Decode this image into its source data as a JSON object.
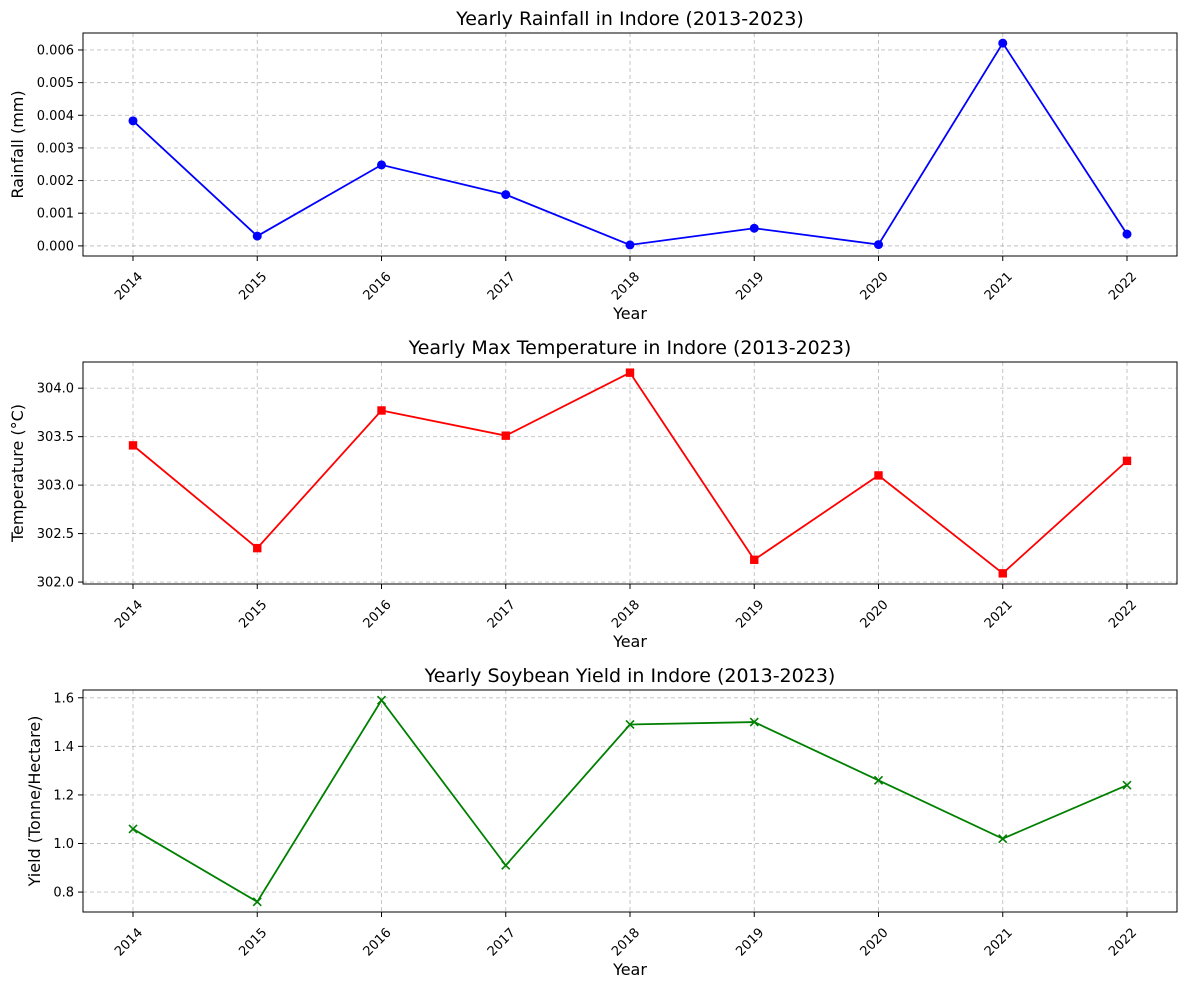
{
  "chart_data": [
    {
      "type": "line",
      "title": "Yearly Rainfall in Indore (2013-2023)",
      "xlabel": "Year",
      "ylabel": "Rainfall (mm)",
      "x": [
        "2014",
        "2015",
        "2016",
        "2017",
        "2018",
        "2019",
        "2020",
        "2021",
        "2022"
      ],
      "series": [
        {
          "name": "Rainfall",
          "values": [
            0.00383,
            0.0003,
            0.00248,
            0.00157,
            3e-05,
            0.00054,
            4e-05,
            0.00621,
            0.00036
          ],
          "color": "#0000ff",
          "marker": "circle"
        }
      ],
      "ylim": [
        -0.00031,
        0.00652
      ],
      "yticks": [
        0.0,
        0.001,
        0.002,
        0.003,
        0.004,
        0.005,
        0.006
      ],
      "ytick_labels": [
        "0.000",
        "0.001",
        "0.002",
        "0.003",
        "0.004",
        "0.005",
        "0.006"
      ],
      "grid": true
    },
    {
      "type": "line",
      "title": "Yearly Max Temperature in Indore (2013-2023)",
      "xlabel": "Year",
      "ylabel": "Temperature (°C)",
      "x": [
        "2014",
        "2015",
        "2016",
        "2017",
        "2018",
        "2019",
        "2020",
        "2021",
        "2022"
      ],
      "series": [
        {
          "name": "Max Temperature",
          "values": [
            303.41,
            302.35,
            303.77,
            303.51,
            304.16,
            302.23,
            303.1,
            302.09,
            303.25
          ],
          "color": "#ff0000",
          "marker": "square"
        }
      ],
      "ylim": [
        301.98,
        304.27
      ],
      "yticks": [
        302.0,
        302.5,
        303.0,
        303.5,
        304.0
      ],
      "ytick_labels": [
        "302.0",
        "302.5",
        "303.0",
        "303.5",
        "304.0"
      ],
      "grid": true
    },
    {
      "type": "line",
      "title": "Yearly Soybean Yield in Indore (2013-2023)",
      "xlabel": "Year",
      "ylabel": "Yield (Tonne/Hectare)",
      "x": [
        "2014",
        "2015",
        "2016",
        "2017",
        "2018",
        "2019",
        "2020",
        "2021",
        "2022"
      ],
      "series": [
        {
          "name": "Soybean Yield",
          "values": [
            1.06,
            0.76,
            1.59,
            0.91,
            1.49,
            1.5,
            1.26,
            1.02,
            1.24
          ],
          "color": "#008000",
          "marker": "x"
        }
      ],
      "ylim": [
        0.718,
        1.632
      ],
      "yticks": [
        0.8,
        1.0,
        1.2,
        1.4,
        1.6
      ],
      "ytick_labels": [
        "0.8",
        "1.0",
        "1.2",
        "1.4",
        "1.6"
      ],
      "grid": true
    }
  ]
}
